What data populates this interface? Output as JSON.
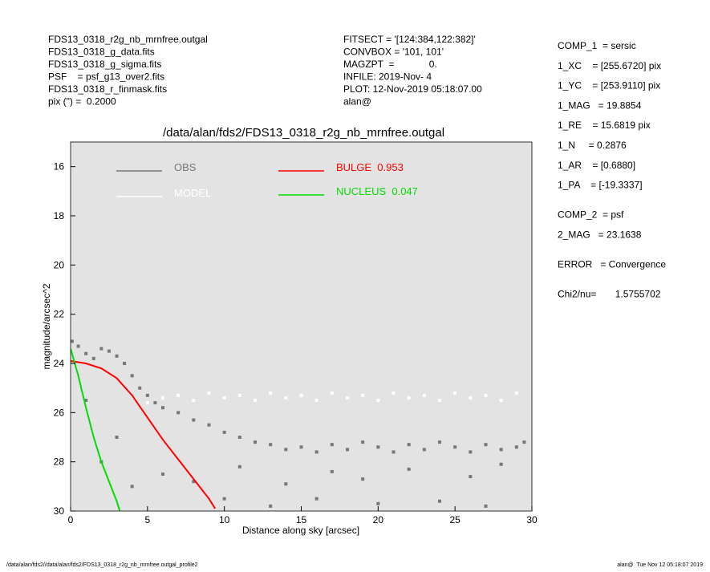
{
  "header": {
    "left": [
      "FDS13_0318_r2g_nb_mrnfree.outgal",
      "FDS13_0318_g_data.fits",
      "FDS13_0318_g_sigma.fits",
      "PSF    = psf_g13_over2.fits",
      "FDS13_0318_r_finmask.fits",
      "pix (\") =  0.2000"
    ],
    "middle": [
      "FITSECT = '[124:384,122:382]'",
      "CONVBOX = '101, 101'",
      "MAGZPT  =             0.",
      "INFILE: 2019-Nov- 4",
      "PLOT: 12-Nov-2019 05:18:07.00",
      "alan@"
    ],
    "right": [
      [
        "COMP_1  = sersic",
        "1_XC    = [255.6720] pix",
        "1_YC    = [253.9110] pix",
        "1_MAG   = 19.8854",
        "1_RE    = 15.6819 pix",
        "1_N     = 0.2876",
        "1_AR    = [0.6880]",
        "1_PA    = [-19.3337]"
      ],
      [
        "COMP_2  = psf",
        "2_MAG   = 23.1638"
      ],
      [
        "ERROR   = Convergence"
      ],
      [
        "Chi2/nu=       1.5755702"
      ]
    ]
  },
  "footer": {
    "left": "/data/alan/fds2//data/alan/fds2/FDS13_0318_r2g_nb_mrnfree.outgal_profile2",
    "right": "alan@  Tue Nov 12 05:18:07 2019"
  },
  "chart_data": {
    "type": "scatter",
    "title": "/data/alan/fds2/FDS13_0318_r2g_nb_mrnfree.outgal",
    "x_label": "Distance along sky [arcsec]",
    "y_label": "magnitude/arcsec^2",
    "xlim": [
      0,
      30
    ],
    "ylim": [
      15,
      30
    ],
    "y_inverted": true,
    "xticks": [
      0,
      5,
      10,
      15,
      20,
      25,
      30
    ],
    "yticks": [
      16,
      18,
      20,
      22,
      24,
      26,
      28,
      30
    ],
    "background": "#e3e3e3",
    "series": [
      {
        "name": "OBS",
        "type": "scatter",
        "color": "#777777",
        "x": [
          0.1,
          0.5,
          1,
          1.5,
          2,
          2.5,
          3,
          3.5,
          4,
          4.5,
          5,
          5.5,
          6,
          7,
          8,
          9,
          10,
          11,
          12,
          13,
          14,
          15,
          16,
          17,
          18,
          19,
          20,
          21,
          22,
          23,
          24,
          25,
          26,
          27,
          28,
          29,
          29.5,
          10,
          13,
          16,
          20,
          24,
          27,
          2,
          3,
          4,
          1,
          6,
          8,
          11,
          14,
          17,
          19,
          22,
          26,
          28
        ],
        "values": [
          23.1,
          23.3,
          23.6,
          23.8,
          23.4,
          23.5,
          23.7,
          24,
          24.5,
          25,
          25.3,
          25.6,
          25.8,
          26,
          26.3,
          26.5,
          26.8,
          27,
          27.2,
          27.3,
          27.5,
          27.4,
          27.6,
          27.3,
          27.5,
          27.2,
          27.4,
          27.6,
          27.3,
          27.5,
          27.2,
          27.4,
          27.6,
          27.3,
          27.5,
          27.4,
          27.2,
          29.5,
          29.8,
          29.5,
          29.7,
          29.6,
          29.8,
          28,
          27,
          29,
          25.5,
          28.5,
          28.8,
          28.2,
          28.9,
          28.4,
          28.7,
          28.3,
          28.6,
          28.1
        ]
      },
      {
        "name": "MODEL",
        "type": "scatter",
        "color": "#ffffff",
        "x": [
          5,
          6,
          7,
          8,
          9,
          10,
          11,
          12,
          13,
          14,
          15,
          16,
          17,
          18,
          19,
          20,
          21,
          22,
          23,
          24,
          25,
          26,
          27,
          28,
          29
        ],
        "values": [
          25.6,
          25.4,
          25.3,
          25.5,
          25.2,
          25.4,
          25.3,
          25.5,
          25.2,
          25.4,
          25.3,
          25.5,
          25.2,
          25.4,
          25.3,
          25.5,
          25.2,
          25.4,
          25.3,
          25.5,
          25.2,
          25.4,
          25.3,
          25.5,
          25.2
        ]
      },
      {
        "name": "BULGE  0.953",
        "type": "line",
        "color": "#ff0000",
        "x": [
          0,
          1,
          2,
          3,
          4,
          5,
          6,
          7,
          8,
          9,
          9.4
        ],
        "values": [
          23.9,
          24,
          24.2,
          24.6,
          25.3,
          26.2,
          27.1,
          27.9,
          28.7,
          29.5,
          29.9
        ]
      },
      {
        "name": "NUCLEUS  0.047",
        "type": "line",
        "color": "#00dd00",
        "x": [
          0,
          0.5,
          1,
          1.5,
          2,
          2.5,
          3,
          3.2
        ],
        "values": [
          23.4,
          24.5,
          25.8,
          27,
          28,
          28.8,
          29.6,
          30
        ]
      }
    ]
  }
}
